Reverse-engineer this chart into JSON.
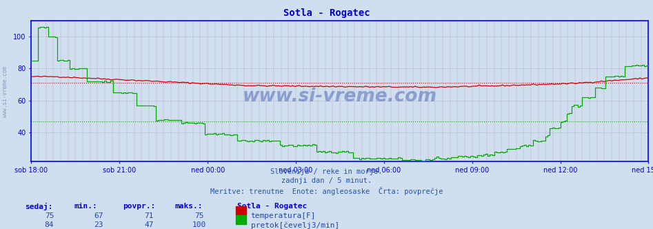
{
  "title": "Sotla - Rogatec",
  "title_color": "#0000cc",
  "bg_color": "#d0dff0",
  "plot_bg_color": "#d0dff0",
  "grid_v_color": "#cc4444",
  "grid_h_color": "#aaaacc",
  "axis_color": "#0000cc",
  "xtick_labels": [
    "sob 18:00",
    "sob 21:00",
    "ned 00:00",
    "ned 03:00",
    "ned 06:00",
    "ned 09:00",
    "ned 12:00",
    "ned 15:00"
  ],
  "xtick_positions": [
    0,
    36,
    72,
    108,
    144,
    180,
    216,
    252
  ],
  "ytick_labels": [
    "40",
    "60",
    "80",
    "100"
  ],
  "ytick_positions": [
    40,
    60,
    80,
    100
  ],
  "ymin": 22,
  "ymax": 110,
  "xmin": 0,
  "xmax": 252,
  "temp_color": "#cc0000",
  "flow_color": "#00aa00",
  "temp_avg": 71,
  "flow_avg": 47,
  "subtitle1": "Slovenija / reke in morje.",
  "subtitle2": "zadnji dan / 5 minut.",
  "subtitle3": "Meritve: trenutne  Enote: angleosaske  Črta: povprečje",
  "subtitle_color": "#2255aa",
  "watermark": "www.si-vreme.com",
  "watermark_color": "#3355aa",
  "side_text": "www.si-vreme.com",
  "table_headers": [
    "sedaj:",
    "min.:",
    "povpr.:",
    "maks.:"
  ],
  "table_header_color": "#0000cc",
  "table_values_color": "#2244aa",
  "station_label": "Sotla - Rogatec",
  "row1_values": [
    75,
    67,
    71,
    75
  ],
  "row2_values": [
    84,
    23,
    47,
    100
  ],
  "legend1": "temperatura[F]",
  "legend2": "pretok[čevelj3/min]"
}
